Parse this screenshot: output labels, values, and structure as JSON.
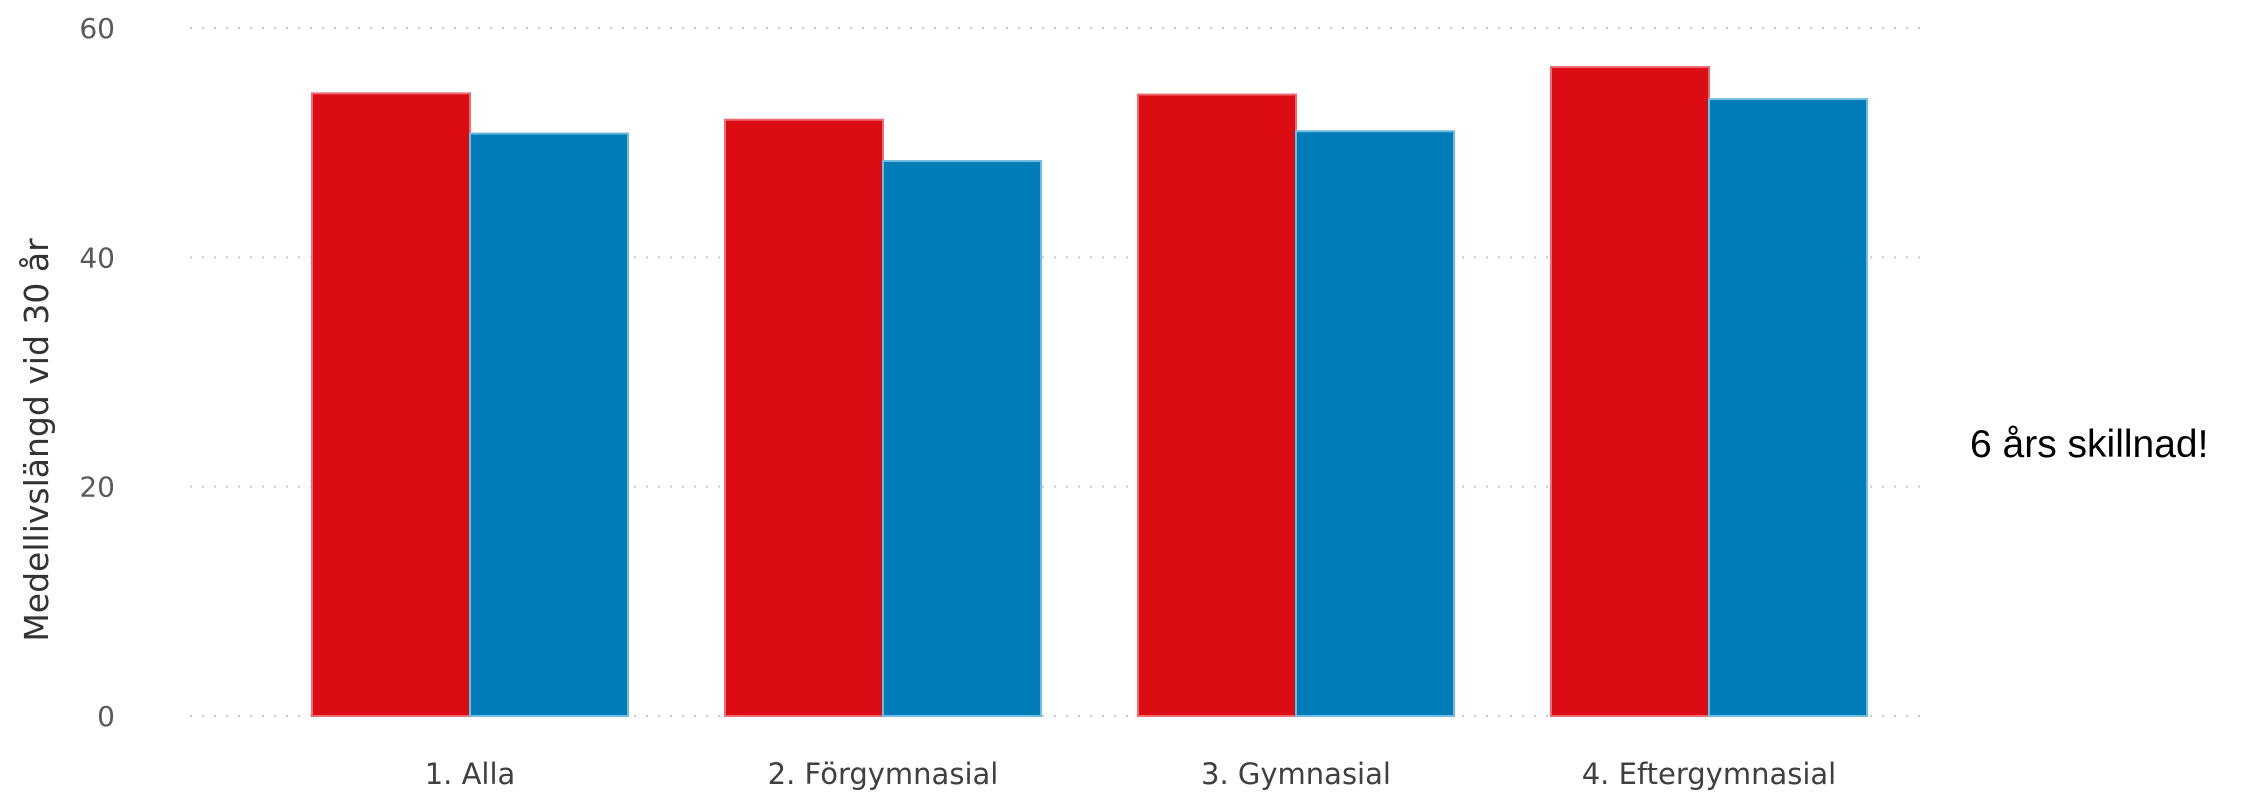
{
  "chart_data": {
    "type": "bar",
    "categories": [
      "1. Alla",
      "2. Förgymnasial",
      "3. Gymnasial",
      "4. Eftergymnasial"
    ],
    "series": [
      {
        "values": [
          54.3,
          52.0,
          54.2,
          56.6
        ],
        "color": "#dc0c15"
      },
      {
        "values": [
          50.8,
          48.4,
          51.0,
          53.8
        ],
        "color": "#007cb8"
      }
    ],
    "ylabel": "Medellivslängd vid 30 år",
    "xlabel": "",
    "ylim": [
      0,
      60
    ],
    "yticks": [
      0,
      20,
      40,
      60
    ],
    "grid": true
  },
  "annotation": "6 års skillnad!"
}
